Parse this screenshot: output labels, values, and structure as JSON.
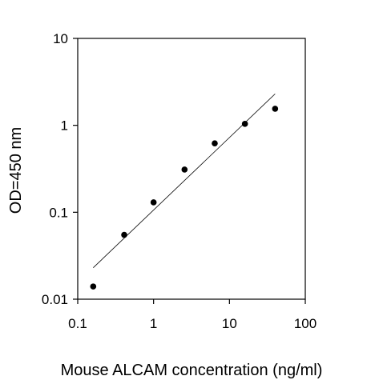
{
  "chart_data": {
    "type": "scatter",
    "title": "",
    "xlabel": "Mouse ALCAM concentration (ng/ml)",
    "ylabel": "OD=450 nm",
    "xscale": "log",
    "yscale": "log",
    "xlim": [
      0.1,
      100
    ],
    "ylim": [
      0.01,
      10
    ],
    "grid": false,
    "legend": "none",
    "x_ticks": [
      0.1,
      1,
      10,
      100
    ],
    "x_tick_labels": [
      "0.1",
      "1",
      "10",
      "100"
    ],
    "y_ticks": [
      0.01,
      0.1,
      1,
      10
    ],
    "y_tick_labels": [
      "0.01",
      "0.1",
      "1",
      "10"
    ],
    "series": [
      {
        "points": [
          {
            "x": 0.16,
            "y": 0.014
          },
          {
            "x": 0.41,
            "y": 0.055
          },
          {
            "x": 1.0,
            "y": 0.13
          },
          {
            "x": 2.56,
            "y": 0.31
          },
          {
            "x": 6.4,
            "y": 0.62
          },
          {
            "x": 16,
            "y": 1.04
          },
          {
            "x": 40,
            "y": 1.55
          }
        ],
        "color": "#000000",
        "marker": "circle"
      }
    ],
    "fit_line": {
      "type": "linear-on-log",
      "x": [
        0.16,
        40
      ],
      "y": [
        0.023,
        2.3
      ],
      "color": "#000000"
    }
  }
}
